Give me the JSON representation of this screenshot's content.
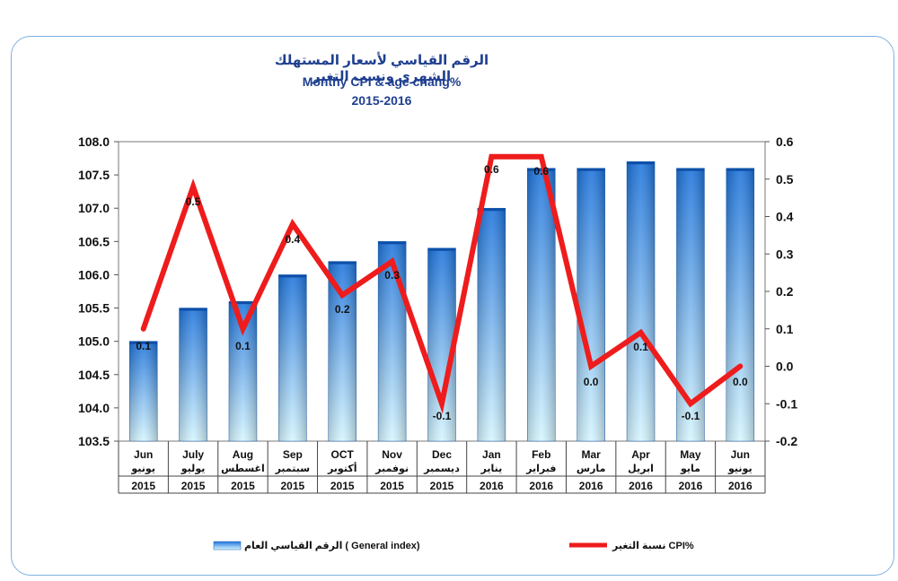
{
  "title": {
    "ar": "الرقم القياسي لأسعار المستهلك الشهري ونسب التغير",
    "en": "Monthy CPI & age chang%",
    "years": "2015-2016"
  },
  "legend": {
    "bars": "الرقم القياسي العام ( General index)",
    "line": "نسبة التغير CPI%"
  },
  "colors": {
    "bar_top": "#1e74dc",
    "bar_bottom": "#d6f6ff",
    "line": "#ee1c1c",
    "border": "#7fb0e0",
    "title": "#1f3f8f"
  },
  "chart_data": {
    "type": "bar",
    "categories": [
      {
        "en": "Jun",
        "ar": "يونيو",
        "year": "2015"
      },
      {
        "en": "July",
        "ar": "يوليو",
        "year": "2015"
      },
      {
        "en": "Aug",
        "ar": "اغسطس",
        "year": "2015"
      },
      {
        "en": "Sep",
        "ar": "سبتمبر",
        "year": "2015"
      },
      {
        "en": "OCT",
        "ar": "أكتوبر",
        "year": "2015"
      },
      {
        "en": "Nov",
        "ar": "نوفمبر",
        "year": "2015"
      },
      {
        "en": "Dec",
        "ar": "ديسمبر",
        "year": "2015"
      },
      {
        "en": "Jan",
        "ar": "يناير",
        "year": "2016"
      },
      {
        "en": "Feb",
        "ar": "فبراير",
        "year": "2016"
      },
      {
        "en": "Mar",
        "ar": "مارس",
        "year": "2016"
      },
      {
        "en": "Apr",
        "ar": "ابريل",
        "year": "2016"
      },
      {
        "en": "May",
        "ar": "مايو",
        "year": "2016"
      },
      {
        "en": "Jun",
        "ar": "يونيو",
        "year": "2016"
      }
    ],
    "series": [
      {
        "name": "الرقم القياسي العام ( General index)",
        "type": "bar",
        "axis": "left",
        "values": [
          105.0,
          105.5,
          105.6,
          106.0,
          106.2,
          106.5,
          106.4,
          107.0,
          107.6,
          107.6,
          107.7,
          107.6,
          107.6
        ]
      },
      {
        "name": "نسبة التغير CPI%",
        "type": "line",
        "axis": "right",
        "values": [
          0.1,
          0.48,
          0.1,
          0.38,
          0.19,
          0.28,
          -0.1,
          0.56,
          0.56,
          0.0,
          0.09,
          -0.1,
          0.0
        ],
        "labels": [
          "0.1",
          "0.5",
          "0.1",
          "0.4",
          "0.2",
          "0.3",
          "-0.1",
          "0.6",
          "0.6",
          "0.0",
          "0.1",
          "-0.1",
          "0.0"
        ]
      }
    ],
    "y_left": {
      "min": 103.5,
      "max": 108.0,
      "step": 0.5,
      "ticks": [
        "103.5",
        "104.0",
        "104.5",
        "105.0",
        "105.5",
        "106.0",
        "106.5",
        "107.0",
        "107.5",
        "108.0"
      ]
    },
    "y_right": {
      "min": -0.2,
      "max": 0.6,
      "step": 0.1,
      "ticks": [
        "-0.2",
        "-0.1",
        "0.0",
        "0.1",
        "0.2",
        "0.3",
        "0.4",
        "0.5",
        "0.6"
      ]
    },
    "grid": "horizontal-none",
    "legend_position": "bottom"
  }
}
